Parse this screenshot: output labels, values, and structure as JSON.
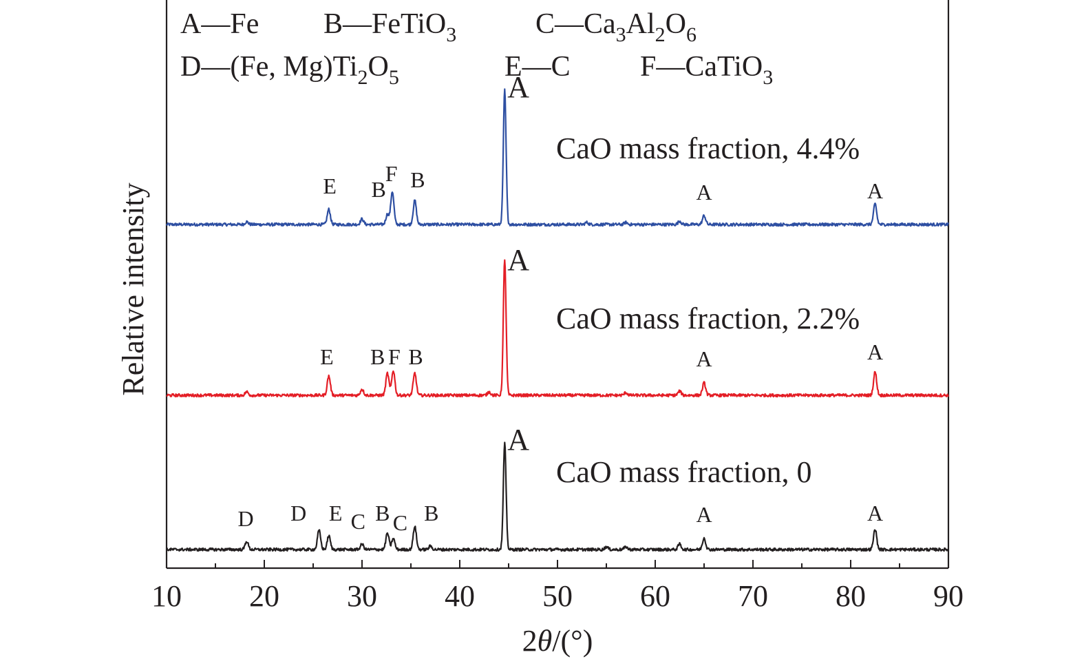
{
  "chart_data": {
    "type": "line",
    "xlabel_prefix": "2",
    "xlabel_theta": "θ",
    "xlabel_unit": "/(°)",
    "ylabel": "Relative intensity",
    "xlim": [
      10,
      90
    ],
    "x_ticks": [
      10,
      20,
      30,
      40,
      50,
      60,
      70,
      80,
      90
    ],
    "grid": false,
    "legend_placement": "top-left",
    "phase_legend": [
      {
        "key": "A",
        "sep": "—",
        "parts": [
          {
            "t": "Fe"
          }
        ]
      },
      {
        "key": "B",
        "sep": "—",
        "parts": [
          {
            "t": "FeTiO"
          },
          {
            "t": "3",
            "sub": true
          }
        ]
      },
      {
        "key": "C",
        "sep": "—",
        "parts": [
          {
            "t": "Ca"
          },
          {
            "t": "3",
            "sub": true
          },
          {
            "t": "Al"
          },
          {
            "t": "2",
            "sub": true
          },
          {
            "t": "O"
          },
          {
            "t": "6",
            "sub": true
          }
        ]
      },
      {
        "key": "D",
        "sep": "—",
        "parts": [
          {
            "t": "(Fe, Mg)Ti"
          },
          {
            "t": "2",
            "sub": true
          },
          {
            "t": "O"
          },
          {
            "t": "5",
            "sub": true
          }
        ]
      },
      {
        "key": "E",
        "sep": "—",
        "parts": [
          {
            "t": "C"
          }
        ]
      },
      {
        "key": "F",
        "sep": "—",
        "parts": [
          {
            "t": "CaTiO"
          },
          {
            "t": "3",
            "sub": true
          }
        ]
      }
    ],
    "series": [
      {
        "label": "CaO mass fraction, 4.4%",
        "color": "#2e4fa2",
        "peaks": [
          [
            26.6,
            22
          ],
          [
            30.0,
            8
          ],
          [
            32.6,
            15
          ],
          [
            33.1,
            48
          ],
          [
            35.4,
            35
          ],
          [
            44.6,
            195
          ],
          [
            65.0,
            13
          ],
          [
            82.5,
            30
          ],
          [
            18.2,
            4
          ],
          [
            53,
            3
          ],
          [
            57,
            3
          ],
          [
            62.5,
            5
          ]
        ],
        "annotations": [
          {
            "text": "E",
            "x": 26.7,
            "h": 45
          },
          {
            "text": "B",
            "x": 31.7,
            "h": 40
          },
          {
            "text": "F",
            "x": 33.0,
            "h": 63
          },
          {
            "text": "B",
            "x": 35.7,
            "h": 54
          },
          {
            "text": "A",
            "x": 46.0,
            "h": 185
          },
          {
            "text": "A",
            "x": 65.0,
            "h": 36
          },
          {
            "text": "A",
            "x": 82.5,
            "h": 38
          }
        ]
      },
      {
        "label": "CaO mass fraction, 2.2%",
        "color": "#e41e26",
        "peaks": [
          [
            26.6,
            28
          ],
          [
            30.0,
            9
          ],
          [
            32.6,
            32
          ],
          [
            33.2,
            36
          ],
          [
            35.4,
            32
          ],
          [
            44.6,
            198
          ],
          [
            65.0,
            18
          ],
          [
            82.5,
            34
          ],
          [
            18.2,
            5
          ],
          [
            43.0,
            5
          ],
          [
            57,
            4
          ],
          [
            62.5,
            6
          ]
        ],
        "annotations": [
          {
            "text": "E",
            "x": 26.4,
            "h": 45
          },
          {
            "text": "B",
            "x": 31.6,
            "h": 45
          },
          {
            "text": "F",
            "x": 33.3,
            "h": 45
          },
          {
            "text": "B",
            "x": 35.5,
            "h": 45
          },
          {
            "text": "A",
            "x": 46.0,
            "h": 182
          },
          {
            "text": "A",
            "x": 65.0,
            "h": 42
          },
          {
            "text": "A",
            "x": 82.5,
            "h": 52
          }
        ]
      },
      {
        "label": "CaO mass fraction, 0",
        "color": "#231f20",
        "peaks": [
          [
            18.2,
            12
          ],
          [
            25.6,
            28
          ],
          [
            26.6,
            20
          ],
          [
            30.0,
            8
          ],
          [
            32.6,
            24
          ],
          [
            33.2,
            16
          ],
          [
            35.4,
            34
          ],
          [
            37,
            5
          ],
          [
            44.6,
            155
          ],
          [
            65.0,
            17
          ],
          [
            82.5,
            30
          ],
          [
            55,
            4
          ],
          [
            57,
            4
          ],
          [
            62.5,
            8
          ]
        ],
        "annotations": [
          {
            "text": "D",
            "x": 18.1,
            "h": 34
          },
          {
            "text": "D",
            "x": 23.5,
            "h": 42
          },
          {
            "text": "E",
            "x": 27.3,
            "h": 42
          },
          {
            "text": "C",
            "x": 29.6,
            "h": 30
          },
          {
            "text": "B",
            "x": 32.1,
            "h": 42
          },
          {
            "text": "C",
            "x": 33.9,
            "h": 28
          },
          {
            "text": "B",
            "x": 37.1,
            "h": 42
          },
          {
            "text": "A",
            "x": 46.0,
            "h": 145
          },
          {
            "text": "A",
            "x": 65.0,
            "h": 40
          },
          {
            "text": "A",
            "x": 82.5,
            "h": 42
          }
        ]
      }
    ]
  }
}
